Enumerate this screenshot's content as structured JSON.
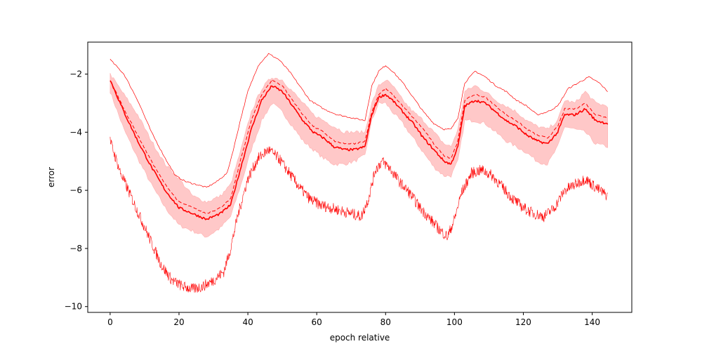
{
  "chart_data": {
    "type": "line",
    "title": "",
    "xlabel": "epoch relative",
    "ylabel": "error",
    "xlim": [
      -6.5,
      151.5
    ],
    "ylim": [
      -10.2,
      -0.9
    ],
    "xticks": [
      0,
      20,
      40,
      60,
      80,
      100,
      120,
      140
    ],
    "yticks": [
      -10,
      -8,
      -6,
      -4,
      -2
    ],
    "xtick_labels": [
      "0",
      "20",
      "40",
      "60",
      "80",
      "100",
      "120",
      "140"
    ],
    "ytick_labels": [
      "−10",
      "−8",
      "−6",
      "−4",
      "−2"
    ],
    "grid": false,
    "legend": "none",
    "color": "#ff0000",
    "band_color": "#ffc8c8",
    "band": {
      "x": [
        0,
        4,
        8,
        12,
        16,
        20,
        24,
        28,
        32,
        35,
        38,
        41,
        44,
        47,
        50,
        53,
        56,
        59,
        62,
        65,
        68,
        71,
        74,
        76,
        78,
        80,
        82,
        85,
        88,
        91,
        94,
        97,
        99,
        101,
        103,
        106,
        109,
        112,
        115,
        118,
        121,
        124,
        127,
        130,
        132,
        135,
        138,
        141,
        144.5
      ],
      "lower": [
        -2.6,
        -3.9,
        -4.9,
        -5.8,
        -6.6,
        -7.2,
        -7.4,
        -7.6,
        -7.3,
        -6.9,
        -5.8,
        -4.6,
        -3.6,
        -3.0,
        -3.3,
        -3.8,
        -4.3,
        -4.6,
        -4.9,
        -5.1,
        -5.1,
        -5.0,
        -4.8,
        -3.6,
        -3.0,
        -3.0,
        -3.3,
        -3.7,
        -4.2,
        -4.7,
        -5.2,
        -5.5,
        -5.5,
        -5.0,
        -3.6,
        -3.6,
        -3.7,
        -4.0,
        -4.3,
        -4.5,
        -4.7,
        -5.0,
        -5.1,
        -4.5,
        -3.8,
        -3.9,
        -4.0,
        -4.4,
        -4.5
      ],
      "upper": [
        -2.0,
        -2.7,
        -3.4,
        -4.3,
        -5.1,
        -5.6,
        -6.2,
        -6.4,
        -6.2,
        -5.8,
        -4.6,
        -3.3,
        -2.5,
        -2.1,
        -2.2,
        -2.6,
        -3.0,
        -3.4,
        -3.6,
        -3.8,
        -4.0,
        -4.0,
        -4.0,
        -3.0,
        -2.4,
        -2.2,
        -2.4,
        -2.9,
        -3.3,
        -3.6,
        -4.0,
        -4.4,
        -4.5,
        -3.9,
        -2.6,
        -2.4,
        -2.6,
        -2.9,
        -3.1,
        -3.3,
        -3.6,
        -3.8,
        -3.9,
        -3.6,
        -2.9,
        -3.0,
        -2.6,
        -3.0,
        -3.1
      ]
    },
    "series": [
      {
        "style": "upper-thin",
        "x": [
          0,
          4,
          8,
          12,
          16,
          19,
          22,
          25,
          28,
          31,
          34,
          36,
          38,
          40,
          43,
          46,
          49,
          52,
          55,
          58,
          62,
          66,
          70,
          74,
          76,
          78,
          80,
          82,
          85,
          88,
          91,
          94,
          97,
          99,
          101,
          103,
          106,
          109,
          112,
          115,
          118,
          121,
          124,
          127,
          130,
          133,
          136,
          139,
          142,
          144.5
        ],
        "y": [
          -1.5,
          -2.0,
          -2.9,
          -4.0,
          -4.9,
          -5.5,
          -5.7,
          -5.8,
          -5.9,
          -5.7,
          -5.4,
          -4.5,
          -3.5,
          -2.6,
          -1.7,
          -1.3,
          -1.5,
          -1.9,
          -2.4,
          -2.9,
          -3.2,
          -3.4,
          -3.5,
          -3.6,
          -2.4,
          -1.9,
          -1.7,
          -1.9,
          -2.3,
          -2.8,
          -3.3,
          -3.7,
          -3.9,
          -3.9,
          -3.5,
          -2.3,
          -1.9,
          -2.1,
          -2.4,
          -2.6,
          -2.9,
          -3.1,
          -3.4,
          -3.3,
          -3.1,
          -2.5,
          -2.3,
          -2.1,
          -2.3,
          -2.6
        ]
      },
      {
        "style": "dashed",
        "x": [
          0,
          4,
          8,
          12,
          16,
          20,
          24,
          28,
          32,
          35,
          38,
          41,
          44,
          47,
          50,
          53,
          56,
          59,
          62,
          65,
          68,
          71,
          74,
          76,
          78,
          80,
          82,
          85,
          88,
          91,
          94,
          97,
          99,
          101,
          103,
          106,
          109,
          112,
          115,
          118,
          121,
          124,
          127,
          130,
          132,
          135,
          138,
          141,
          144.5
        ],
        "y": [
          -2.2,
          -3.2,
          -4.1,
          -5.0,
          -5.8,
          -6.4,
          -6.6,
          -6.8,
          -6.6,
          -6.3,
          -4.9,
          -3.6,
          -2.7,
          -2.2,
          -2.4,
          -2.9,
          -3.4,
          -3.8,
          -4.0,
          -4.3,
          -4.4,
          -4.4,
          -4.3,
          -3.3,
          -2.7,
          -2.5,
          -2.7,
          -3.1,
          -3.5,
          -3.9,
          -4.4,
          -4.8,
          -4.9,
          -4.3,
          -2.9,
          -2.7,
          -2.8,
          -3.1,
          -3.4,
          -3.6,
          -3.9,
          -4.1,
          -4.2,
          -3.8,
          -3.2,
          -3.2,
          -3.0,
          -3.4,
          -3.5
        ]
      },
      {
        "style": "solid",
        "x": [
          0,
          4,
          8,
          12,
          16,
          20,
          24,
          28,
          32,
          35,
          38,
          41,
          44,
          47,
          50,
          53,
          56,
          59,
          62,
          65,
          68,
          71,
          74,
          76,
          78,
          80,
          82,
          85,
          88,
          91,
          94,
          97,
          99,
          101,
          103,
          106,
          109,
          112,
          115,
          118,
          121,
          124,
          127,
          130,
          132,
          135,
          138,
          141,
          144.5
        ],
        "y": [
          -2.2,
          -3.3,
          -4.3,
          -5.2,
          -6.0,
          -6.6,
          -6.8,
          -7.0,
          -6.8,
          -6.5,
          -5.2,
          -3.9,
          -2.9,
          -2.4,
          -2.6,
          -3.1,
          -3.6,
          -4.0,
          -4.2,
          -4.5,
          -4.6,
          -4.6,
          -4.5,
          -3.4,
          -2.8,
          -2.7,
          -2.9,
          -3.3,
          -3.7,
          -4.2,
          -4.6,
          -5.0,
          -5.1,
          -4.5,
          -3.1,
          -2.9,
          -3.0,
          -3.3,
          -3.6,
          -3.8,
          -4.1,
          -4.3,
          -4.4,
          -4.0,
          -3.4,
          -3.4,
          -3.2,
          -3.6,
          -3.7
        ]
      },
      {
        "style": "lower-noisy",
        "x": [
          0,
          3,
          6,
          9,
          12,
          15,
          18,
          21,
          24,
          27,
          30,
          33,
          35,
          37,
          40,
          43,
          46,
          49,
          52,
          55,
          58,
          61,
          64,
          67,
          70,
          73,
          75,
          77,
          79,
          81,
          84,
          87,
          90,
          93,
          96,
          98,
          100,
          102,
          105,
          108,
          111,
          114,
          117,
          120,
          123,
          126,
          129,
          132,
          135,
          138,
          141,
          144.5
        ],
        "y": [
          -4.3,
          -5.4,
          -6.2,
          -7.0,
          -7.8,
          -8.6,
          -9.1,
          -9.3,
          -9.4,
          -9.3,
          -9.1,
          -8.8,
          -8.0,
          -6.9,
          -5.6,
          -4.9,
          -4.6,
          -4.9,
          -5.4,
          -5.9,
          -6.3,
          -6.5,
          -6.6,
          -6.7,
          -6.8,
          -6.9,
          -6.3,
          -5.3,
          -5.0,
          -5.2,
          -5.7,
          -6.1,
          -6.6,
          -7.0,
          -7.4,
          -7.6,
          -7.0,
          -6.1,
          -5.4,
          -5.3,
          -5.5,
          -5.9,
          -6.3,
          -6.6,
          -6.8,
          -6.9,
          -6.6,
          -6.0,
          -5.8,
          -5.6,
          -5.9,
          -6.2
        ]
      }
    ]
  }
}
